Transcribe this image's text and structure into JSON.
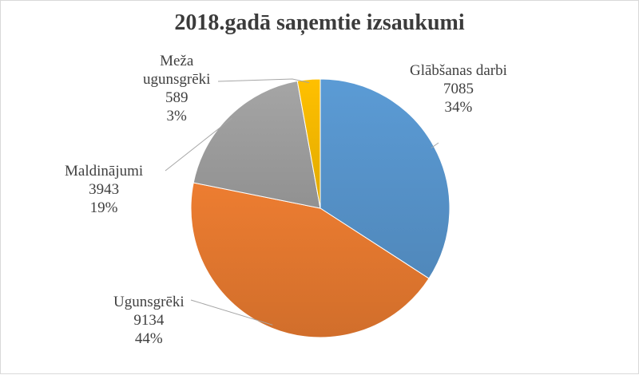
{
  "chart_data": {
    "type": "pie",
    "title": "2018.gadā saņemtie izsaukumi",
    "categories": [
      "Glābšanas darbi",
      "Ugunsgrēki",
      "Maldinājumi",
      "Meža ugunsgrēki"
    ],
    "values": [
      7085,
      9134,
      3943,
      589
    ],
    "percents": [
      "34%",
      "44%",
      "19%",
      "3%"
    ],
    "colors": [
      "#5b9bd5",
      "#ed7d31",
      "#a5a5a5",
      "#ffc000"
    ],
    "data_labels": [
      {
        "name_lines": [
          "Glābšanas darbi"
        ],
        "value": "7085",
        "percent": "34%"
      },
      {
        "name_lines": [
          "Ugunsgrēki"
        ],
        "value": "9134",
        "percent": "44%"
      },
      {
        "name_lines": [
          "Maldinājumi"
        ],
        "value": "3943",
        "percent": "19%"
      },
      {
        "name_lines": [
          "Meža",
          "ugunsgrēki"
        ],
        "value": "589",
        "percent": "3%"
      }
    ],
    "start_angle": "12 o'clock",
    "direction": "clockwise",
    "legend": "none"
  }
}
